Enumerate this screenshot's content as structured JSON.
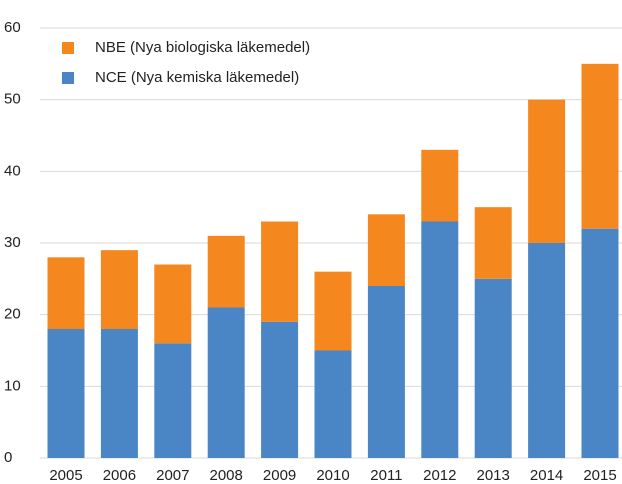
{
  "chart_data": {
    "type": "stacked_bar",
    "categories": [
      "2005",
      "2006",
      "2007",
      "2008",
      "2009",
      "2010",
      "2011",
      "2012",
      "2013",
      "2014",
      "2015"
    ],
    "series": [
      {
        "name": "NCE (Nya kemiska läkemedel)",
        "color": "#4a86c5",
        "values": [
          18,
          18,
          16,
          21,
          19,
          15,
          24,
          33,
          25,
          30,
          32
        ]
      },
      {
        "name": "NBE (Nya biologiska läkemedel)",
        "color": "#f5871f",
        "values": [
          10,
          11,
          11,
          10,
          14,
          11,
          10,
          10,
          10,
          20,
          23
        ]
      }
    ],
    "ylim": [
      0,
      60
    ],
    "yticks": [
      0,
      10,
      20,
      30,
      40,
      50,
      60
    ],
    "grid": true,
    "legend": "upper left"
  }
}
